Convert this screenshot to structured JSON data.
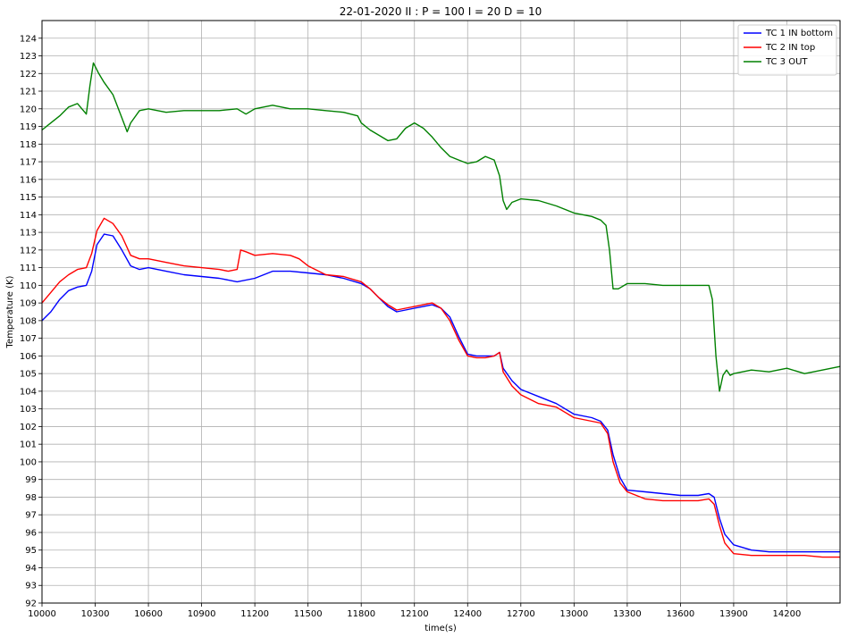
{
  "chart_data": {
    "type": "line",
    "title": "22-01-2020 II : P = 100 I = 20 D = 10",
    "xlabel": "time(s)",
    "ylabel": "Temperature (K)",
    "xlim": [
      10000,
      14500
    ],
    "ylim": [
      92,
      125
    ],
    "xticks": [
      10000,
      10300,
      10600,
      10900,
      11200,
      11500,
      11800,
      12100,
      12400,
      12700,
      13000,
      13300,
      13600,
      13900,
      14200
    ],
    "yticks": [
      92,
      93,
      94,
      95,
      96,
      97,
      98,
      99,
      100,
      101,
      102,
      103,
      104,
      105,
      106,
      107,
      108,
      109,
      110,
      111,
      112,
      113,
      114,
      115,
      116,
      117,
      118,
      119,
      120,
      121,
      122,
      123,
      124
    ],
    "grid": true,
    "legend_position": "top-right",
    "series": [
      {
        "name": "TC 1 IN bottom",
        "color": "#0000ff",
        "x": [
          10000,
          10050,
          10100,
          10150,
          10200,
          10250,
          10280,
          10310,
          10350,
          10400,
          10450,
          10500,
          10550,
          10600,
          10700,
          10800,
          10900,
          11000,
          11100,
          11200,
          11300,
          11400,
          11500,
          11600,
          11700,
          11800,
          11850,
          11900,
          11950,
          12000,
          12050,
          12100,
          12150,
          12200,
          12250,
          12300,
          12350,
          12400,
          12450,
          12500,
          12550,
          12580,
          12600,
          12650,
          12700,
          12800,
          12900,
          13000,
          13100,
          13150,
          13190,
          13220,
          13260,
          13300,
          13400,
          13500,
          13600,
          13700,
          13760,
          13790,
          13820,
          13850,
          13900,
          14000,
          14100,
          14200,
          14300,
          14400,
          14500
        ],
        "y": [
          108.0,
          108.5,
          109.2,
          109.7,
          109.9,
          110.0,
          110.8,
          112.3,
          112.9,
          112.8,
          112.0,
          111.1,
          110.9,
          111.0,
          110.8,
          110.6,
          110.5,
          110.4,
          110.2,
          110.4,
          110.8,
          110.8,
          110.7,
          110.6,
          110.4,
          110.1,
          109.8,
          109.3,
          108.8,
          108.5,
          108.6,
          108.7,
          108.8,
          108.9,
          108.7,
          108.2,
          107.1,
          106.1,
          106.0,
          106.0,
          106.0,
          106.2,
          105.3,
          104.6,
          104.1,
          103.7,
          103.3,
          102.7,
          102.5,
          102.3,
          101.8,
          100.4,
          99.1,
          98.4,
          98.3,
          98.2,
          98.1,
          98.1,
          98.2,
          98.0,
          96.8,
          95.9,
          95.3,
          95.0,
          94.9,
          94.9,
          94.9,
          94.9,
          94.9
        ]
      },
      {
        "name": "TC 2 IN top",
        "color": "#ff0000",
        "x": [
          10000,
          10050,
          10100,
          10150,
          10200,
          10250,
          10280,
          10310,
          10350,
          10400,
          10450,
          10500,
          10550,
          10600,
          10700,
          10800,
          10900,
          11000,
          11050,
          11100,
          11120,
          11150,
          11200,
          11300,
          11400,
          11450,
          11500,
          11600,
          11700,
          11800,
          11850,
          11900,
          11950,
          12000,
          12050,
          12100,
          12150,
          12200,
          12250,
          12300,
          12350,
          12400,
          12450,
          12500,
          12550,
          12580,
          12600,
          12650,
          12700,
          12800,
          12900,
          13000,
          13100,
          13150,
          13190,
          13220,
          13260,
          13300,
          13400,
          13500,
          13600,
          13700,
          13760,
          13790,
          13820,
          13850,
          13900,
          14000,
          14100,
          14200,
          14300,
          14400,
          14500
        ],
        "y": [
          109.0,
          109.6,
          110.2,
          110.6,
          110.9,
          111.0,
          111.8,
          113.1,
          113.8,
          113.5,
          112.8,
          111.7,
          111.5,
          111.5,
          111.3,
          111.1,
          111.0,
          110.9,
          110.8,
          110.9,
          112.0,
          111.9,
          111.7,
          111.8,
          111.7,
          111.5,
          111.1,
          110.6,
          110.5,
          110.2,
          109.8,
          109.3,
          108.9,
          108.6,
          108.7,
          108.8,
          108.9,
          109.0,
          108.7,
          108.0,
          106.9,
          106.0,
          105.9,
          105.9,
          106.0,
          106.2,
          105.1,
          104.3,
          103.8,
          103.3,
          103.1,
          102.5,
          102.3,
          102.2,
          101.6,
          100.0,
          98.8,
          98.3,
          97.9,
          97.8,
          97.8,
          97.8,
          97.9,
          97.6,
          96.4,
          95.4,
          94.8,
          94.7,
          94.7,
          94.7,
          94.7,
          94.6,
          94.6
        ]
      },
      {
        "name": "TC 3 OUT",
        "color": "#008000",
        "x": [
          10000,
          10050,
          10100,
          10150,
          10200,
          10250,
          10270,
          10290,
          10320,
          10350,
          10400,
          10450,
          10480,
          10500,
          10550,
          10600,
          10700,
          10800,
          10900,
          11000,
          11100,
          11150,
          11200,
          11300,
          11400,
          11500,
          11600,
          11700,
          11780,
          11800,
          11850,
          11900,
          11950,
          12000,
          12050,
          12100,
          12150,
          12200,
          12250,
          12300,
          12350,
          12400,
          12450,
          12500,
          12550,
          12580,
          12600,
          12620,
          12650,
          12700,
          12800,
          12900,
          13000,
          13100,
          13150,
          13180,
          13200,
          13220,
          13250,
          13300,
          13400,
          13500,
          13600,
          13700,
          13760,
          13780,
          13800,
          13820,
          13840,
          13860,
          13880,
          13900,
          14000,
          14100,
          14200,
          14300,
          14400,
          14500
        ],
        "y": [
          118.8,
          119.2,
          119.6,
          120.1,
          120.3,
          119.7,
          121.3,
          122.6,
          122.0,
          121.5,
          120.8,
          119.5,
          118.7,
          119.2,
          119.9,
          120.0,
          119.8,
          119.9,
          119.9,
          119.9,
          120.0,
          119.7,
          120.0,
          120.2,
          120.0,
          120.0,
          119.9,
          119.8,
          119.6,
          119.2,
          118.8,
          118.5,
          118.2,
          118.3,
          118.9,
          119.2,
          118.9,
          118.4,
          117.8,
          117.3,
          117.1,
          116.9,
          117.0,
          117.3,
          117.1,
          116.2,
          114.8,
          114.3,
          114.7,
          114.9,
          114.8,
          114.5,
          114.1,
          113.9,
          113.7,
          113.4,
          112.0,
          109.8,
          109.8,
          110.1,
          110.1,
          110.0,
          110.0,
          110.0,
          110.0,
          109.2,
          106.0,
          104.0,
          104.9,
          105.2,
          104.9,
          105.0,
          105.2,
          105.1,
          105.3,
          105.0,
          105.2,
          105.4
        ]
      }
    ]
  }
}
